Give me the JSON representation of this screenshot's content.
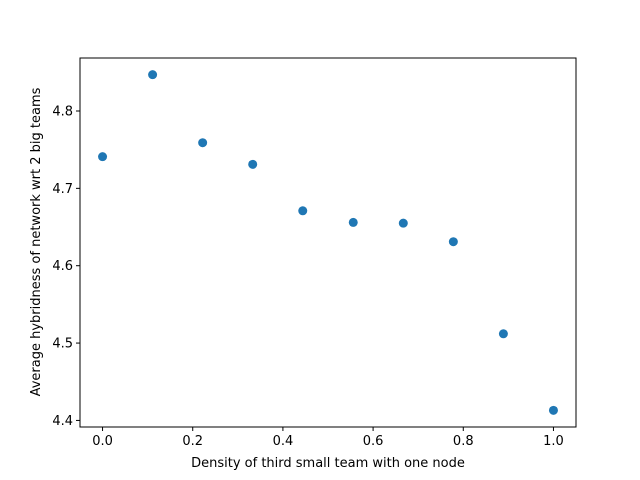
{
  "chart_data": {
    "type": "scatter",
    "title": "",
    "xlabel": "Density of third small team with one node",
    "ylabel": "Average hybridness of network wrt 2 big teams",
    "xlim": [
      -0.05,
      1.05
    ],
    "ylim": [
      4.3915,
      4.8685
    ],
    "xticks": [
      0.0,
      0.2,
      0.4,
      0.6,
      0.8,
      1.0
    ],
    "xtick_labels": [
      "0.0",
      "0.2",
      "0.4",
      "0.6",
      "0.8",
      "1.0"
    ],
    "yticks": [
      4.4,
      4.5,
      4.6,
      4.7,
      4.8
    ],
    "ytick_labels": [
      "4.4",
      "4.5",
      "4.6",
      "4.7",
      "4.8"
    ],
    "grid": false,
    "marker_color": "#1f77b4",
    "series": [
      {
        "x": [
          0.0,
          0.111,
          0.222,
          0.333,
          0.444,
          0.556,
          0.667,
          0.778,
          0.889,
          1.0
        ],
        "y": [
          4.741,
          4.847,
          4.759,
          4.731,
          4.671,
          4.656,
          4.655,
          4.631,
          4.512,
          4.413
        ]
      }
    ]
  }
}
